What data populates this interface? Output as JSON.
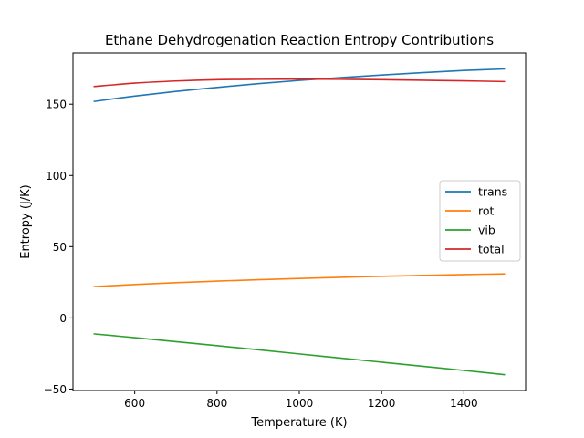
{
  "chart_data": {
    "type": "line",
    "title": "Ethane Dehydrogenation Reaction Entropy Contributions",
    "xlabel": "Temperature (K)",
    "ylabel": "Entropy (J/K)",
    "xlim": [
      450,
      1550
    ],
    "ylim": [
      -51,
      186
    ],
    "xticks": [
      600,
      800,
      1000,
      1200,
      1400
    ],
    "yticks": [
      -50,
      0,
      50,
      100,
      150
    ],
    "x": [
      500,
      600,
      700,
      800,
      900,
      1000,
      1100,
      1200,
      1300,
      1400,
      1500
    ],
    "series": [
      {
        "name": "trans",
        "color": "#1f77b4",
        "values": [
          151.9,
          155.7,
          159.0,
          161.8,
          164.4,
          166.7,
          168.7,
          170.5,
          172.2,
          173.7,
          174.8
        ]
      },
      {
        "name": "rot",
        "color": "#ff7f0e",
        "values": [
          21.9,
          23.4,
          24.7,
          25.8,
          26.8,
          27.7,
          28.5,
          29.2,
          29.8,
          30.4,
          30.9
        ]
      },
      {
        "name": "vib",
        "color": "#2ca02c",
        "values": [
          -11.2,
          -13.9,
          -16.7,
          -19.5,
          -22.4,
          -25.3,
          -28.2,
          -31.1,
          -34.0,
          -36.9,
          -39.9
        ]
      },
      {
        "name": "total",
        "color": "#d62728",
        "values": [
          162.4,
          164.8,
          166.3,
          167.2,
          167.5,
          167.6,
          167.5,
          167.2,
          166.8,
          166.4,
          165.9
        ]
      }
    ],
    "grid": false,
    "legend_position": "center-right"
  }
}
